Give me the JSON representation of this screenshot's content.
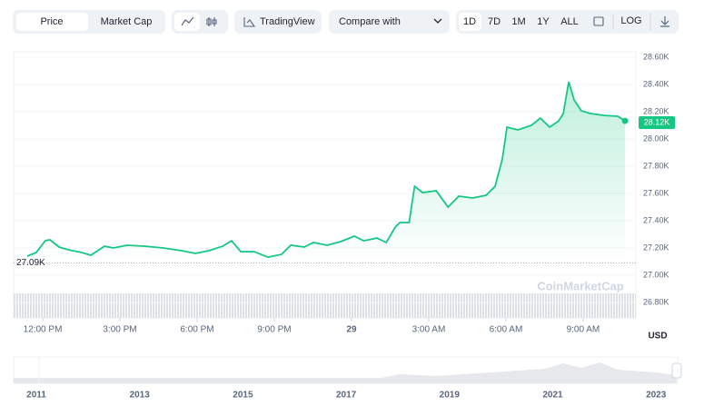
{
  "toolbar": {
    "tabs": [
      "Price",
      "Market Cap"
    ],
    "tradingview": "TradingView",
    "compare": "Compare with",
    "ranges": [
      "1D",
      "7D",
      "1M",
      "1Y",
      "ALL"
    ],
    "log": "LOG"
  },
  "chart_data": {
    "type": "line",
    "color": "#16c784",
    "x": [
      11.4,
      11.75,
      12.1,
      12.28,
      12.64,
      12.99,
      13.52,
      13.87,
      14.4,
      14.75,
      15.28,
      15.99,
      16.69,
      17.4,
      17.93,
      18.46,
      18.99,
      19.34,
      19.7,
      20.22,
      20.75,
      21.28,
      21.64,
      22.17,
      22.52,
      23.05,
      23.58,
      24.11,
      24.47,
      24.99,
      25.35,
      25.7,
      25.88,
      26.24,
      26.45,
      26.76,
      27.29,
      27.75,
      28.17,
      28.7,
      29.23,
      29.58,
      29.86,
      30.04,
      30.46,
      30.99,
      31.34,
      31.7,
      32.05,
      32.23,
      32.44,
      32.65,
      32.93,
      33.29,
      33.82,
      34.35,
      34.63
    ],
    "values": [
      27140,
      27167,
      27253,
      27260,
      27207,
      27187,
      27167,
      27147,
      27213,
      27200,
      27220,
      27213,
      27200,
      27180,
      27160,
      27180,
      27213,
      27253,
      27173,
      27173,
      27133,
      27153,
      27220,
      27207,
      27240,
      27220,
      27247,
      27287,
      27253,
      27273,
      27240,
      27353,
      27387,
      27387,
      27653,
      27607,
      27620,
      27500,
      27580,
      27567,
      27587,
      27653,
      27853,
      28087,
      28067,
      28100,
      28153,
      28087,
      28133,
      28187,
      28420,
      28287,
      28207,
      28187,
      28173,
      28167,
      28133
    ],
    "xlim": [
      10.87,
      35.05
    ],
    "xticks": [
      {
        "value": 12,
        "label": "12:00 PM"
      },
      {
        "value": 15,
        "label": "3:00 PM"
      },
      {
        "value": 18,
        "label": "6:00 PM"
      },
      {
        "value": 21,
        "label": "9:00 PM"
      },
      {
        "value": 24,
        "label": "29"
      },
      {
        "value": 27,
        "label": "3:00 AM"
      },
      {
        "value": 30,
        "label": "6:00 AM"
      },
      {
        "value": 33,
        "label": "9:00 AM"
      }
    ],
    "ylim": [
      26687,
      28640
    ],
    "yticks": [
      {
        "value": 26800,
        "label": "26.80K"
      },
      {
        "value": 27000,
        "label": "27.00K"
      },
      {
        "value": 27200,
        "label": "27.20K"
      },
      {
        "value": 27400,
        "label": "27.40K"
      },
      {
        "value": 27600,
        "label": "27.60K"
      },
      {
        "value": 27800,
        "label": "27.80K"
      },
      {
        "value": 28000,
        "label": "28.00K"
      },
      {
        "value": 28200,
        "label": "28.20K"
      },
      {
        "value": 28400,
        "label": "28.40K"
      },
      {
        "value": 28600,
        "label": "28.60K"
      }
    ],
    "grid": true,
    "current": {
      "value": 28120,
      "label": "28.12K"
    },
    "open": {
      "value": 27090,
      "label": "27.09K"
    },
    "currency": "USD",
    "watermark": "CoinMarketCap",
    "navigator_ticks": [
      "2011",
      "2013",
      "2015",
      "2017",
      "2019",
      "2021",
      "2023"
    ]
  }
}
